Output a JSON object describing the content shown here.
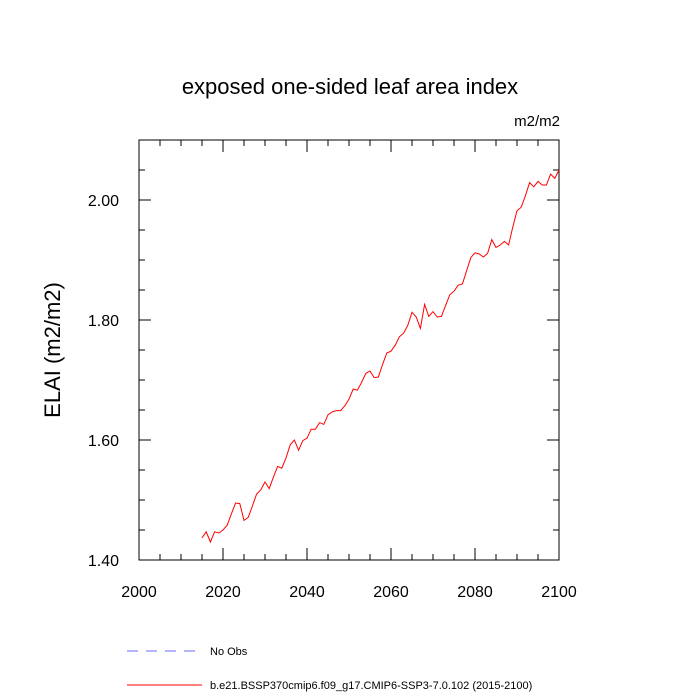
{
  "chart_data": {
    "type": "line",
    "title": "exposed one-sided leaf area index",
    "units": "m2/m2",
    "ylabel": "ELAI  (m2/m2)",
    "xlabel": "",
    "xlim": [
      2000,
      2100
    ],
    "ylim": [
      1.4,
      2.1
    ],
    "xticks": [
      2000,
      2020,
      2040,
      2060,
      2080,
      2100
    ],
    "xtick_labels": [
      "2000",
      "2020",
      "2040",
      "2060",
      "2080",
      "2100"
    ],
    "yticks": [
      1.4,
      1.6,
      1.8,
      2.0
    ],
    "ytick_labels": [
      "1.40",
      "1.60",
      "1.80",
      "2.00"
    ],
    "series": [
      {
        "name": "b.e21.BSSP370cmip6.f09_g17.CMIP6-SSP3-7.0.102 (2015-2100)",
        "color": "#ff0000",
        "dash": "solid",
        "x": [
          2015,
          2016,
          2017,
          2018,
          2019,
          2020,
          2021,
          2022,
          2023,
          2024,
          2025,
          2026,
          2027,
          2028,
          2029,
          2030,
          2031,
          2032,
          2033,
          2034,
          2035,
          2036,
          2037,
          2038,
          2039,
          2040,
          2041,
          2042,
          2043,
          2044,
          2045,
          2046,
          2047,
          2048,
          2049,
          2050,
          2051,
          2052,
          2053,
          2054,
          2055,
          2056,
          2057,
          2058,
          2059,
          2060,
          2061,
          2062,
          2063,
          2064,
          2065,
          2066,
          2067,
          2068,
          2069,
          2070,
          2071,
          2072,
          2073,
          2074,
          2075,
          2076,
          2077,
          2078,
          2079,
          2080,
          2081,
          2082,
          2083,
          2084,
          2085,
          2086,
          2087,
          2088,
          2089,
          2090,
          2091,
          2092,
          2093,
          2094,
          2095,
          2096,
          2097,
          2098,
          2099,
          2100
        ],
        "values": [
          1.437,
          1.447,
          1.43,
          1.447,
          1.445,
          1.45,
          1.458,
          1.477,
          1.495,
          1.494,
          1.466,
          1.471,
          1.49,
          1.51,
          1.517,
          1.53,
          1.519,
          1.538,
          1.556,
          1.553,
          1.57,
          1.592,
          1.6,
          1.583,
          1.599,
          1.603,
          1.618,
          1.618,
          1.629,
          1.626,
          1.642,
          1.647,
          1.649,
          1.649,
          1.657,
          1.668,
          1.685,
          1.683,
          1.696,
          1.711,
          1.715,
          1.704,
          1.705,
          1.726,
          1.745,
          1.748,
          1.758,
          1.772,
          1.778,
          1.791,
          1.813,
          1.805,
          1.786,
          1.826,
          1.806,
          1.814,
          1.805,
          1.806,
          1.824,
          1.842,
          1.848,
          1.858,
          1.86,
          1.882,
          1.904,
          1.912,
          1.91,
          1.905,
          1.911,
          1.934,
          1.921,
          1.925,
          1.931,
          1.925,
          1.955,
          1.982,
          1.988,
          2.007,
          2.029,
          2.022,
          2.031,
          2.025,
          2.025,
          2.043,
          2.036,
          2.05
        ]
      },
      {
        "name": "No Obs",
        "color": "#6a6aff",
        "dash": "dashed",
        "x": [],
        "values": []
      }
    ],
    "legend_position": "bottom-left"
  }
}
